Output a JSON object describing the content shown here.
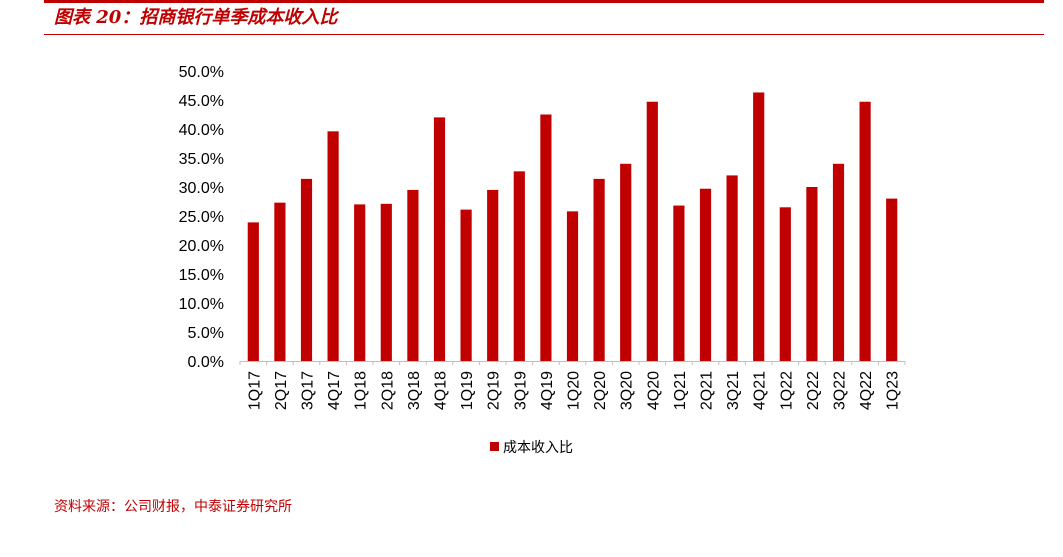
{
  "header": {
    "title": "图表 20：招商银行单季成本收入比"
  },
  "source": "资料来源：公司财报，中泰证券研究所",
  "colors": {
    "accent": "#c00000",
    "bar": "#c00000"
  },
  "chart_data": {
    "type": "bar",
    "title": "",
    "xlabel": "",
    "ylabel": "",
    "categories": [
      "1Q17",
      "2Q17",
      "3Q17",
      "4Q17",
      "1Q18",
      "2Q18",
      "3Q18",
      "4Q18",
      "1Q19",
      "2Q19",
      "3Q19",
      "4Q19",
      "1Q20",
      "2Q20",
      "3Q20",
      "4Q20",
      "1Q21",
      "2Q21",
      "3Q21",
      "4Q21",
      "1Q22",
      "2Q22",
      "3Q22",
      "4Q22",
      "1Q23"
    ],
    "series": [
      {
        "name": "成本收入比",
        "color": "#c00000",
        "values": [
          0.239,
          0.273,
          0.314,
          0.396,
          0.27,
          0.271,
          0.295,
          0.42,
          0.261,
          0.295,
          0.327,
          0.425,
          0.258,
          0.314,
          0.34,
          0.447,
          0.268,
          0.297,
          0.32,
          0.463,
          0.265,
          0.3,
          0.34,
          0.447,
          0.28
        ]
      }
    ],
    "ylim": [
      0,
      0.5
    ],
    "yticks": [
      "0.0%",
      "5.0%",
      "10.0%",
      "15.0%",
      "20.0%",
      "25.0%",
      "30.0%",
      "35.0%",
      "40.0%",
      "45.0%",
      "50.0%"
    ],
    "grid": false,
    "legend_position": "bottom"
  }
}
